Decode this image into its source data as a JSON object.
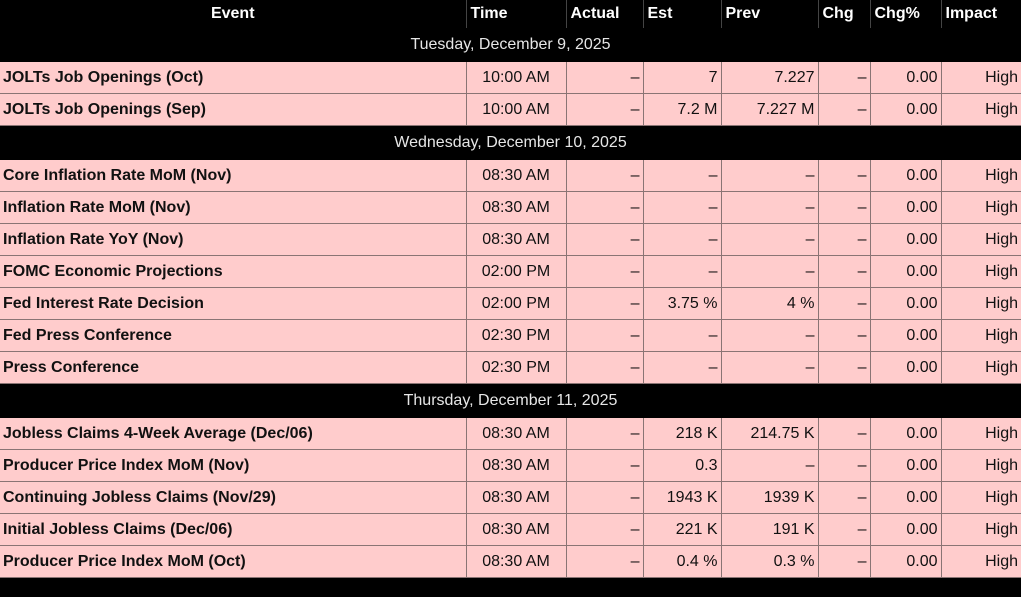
{
  "headers": {
    "event": "Event",
    "time": "Time",
    "actual": "Actual",
    "est": "Est",
    "prev": "Prev",
    "chg": "Chg",
    "chg_pct": "Chg%",
    "impact": "Impact"
  },
  "days": [
    {
      "label": "Tuesday, December 9, 2025",
      "events": [
        {
          "event": "JOLTs Job Openings (Oct)",
          "time": "10:00 AM",
          "actual": "–",
          "est": "7",
          "prev": "7.227",
          "chg": "–",
          "chg_pct": "0.00",
          "impact": "High"
        },
        {
          "event": "JOLTs Job Openings (Sep)",
          "time": "10:00 AM",
          "actual": "–",
          "est": "7.2 M",
          "prev": "7.227 M",
          "chg": "–",
          "chg_pct": "0.00",
          "impact": "High"
        }
      ]
    },
    {
      "label": "Wednesday, December 10, 2025",
      "events": [
        {
          "event": "Core Inflation Rate MoM (Nov)",
          "time": "08:30 AM",
          "actual": "–",
          "est": "–",
          "prev": "–",
          "chg": "–",
          "chg_pct": "0.00",
          "impact": "High"
        },
        {
          "event": "Inflation Rate MoM (Nov)",
          "time": "08:30 AM",
          "actual": "–",
          "est": "–",
          "prev": "–",
          "chg": "–",
          "chg_pct": "0.00",
          "impact": "High"
        },
        {
          "event": "Inflation Rate YoY (Nov)",
          "time": "08:30 AM",
          "actual": "–",
          "est": "–",
          "prev": "–",
          "chg": "–",
          "chg_pct": "0.00",
          "impact": "High"
        },
        {
          "event": "FOMC Economic Projections",
          "time": "02:00 PM",
          "actual": "–",
          "est": "–",
          "prev": "–",
          "chg": "–",
          "chg_pct": "0.00",
          "impact": "High"
        },
        {
          "event": "Fed Interest Rate Decision",
          "time": "02:00 PM",
          "actual": "–",
          "est": "3.75 %",
          "prev": "4 %",
          "chg": "–",
          "chg_pct": "0.00",
          "impact": "High"
        },
        {
          "event": "Fed Press Conference",
          "time": "02:30 PM",
          "actual": "–",
          "est": "–",
          "prev": "–",
          "chg": "–",
          "chg_pct": "0.00",
          "impact": "High"
        },
        {
          "event": "Press Conference",
          "time": "02:30 PM",
          "actual": "–",
          "est": "–",
          "prev": "–",
          "chg": "–",
          "chg_pct": "0.00",
          "impact": "High"
        }
      ]
    },
    {
      "label": "Thursday, December 11, 2025",
      "events": [
        {
          "event": "Jobless Claims 4-Week Average (Dec/06)",
          "time": "08:30 AM",
          "actual": "–",
          "est": "218 K",
          "prev": "214.75 K",
          "chg": "–",
          "chg_pct": "0.00",
          "impact": "High"
        },
        {
          "event": "Producer Price Index MoM (Nov)",
          "time": "08:30 AM",
          "actual": "–",
          "est": "0.3",
          "prev": "–",
          "chg": "–",
          "chg_pct": "0.00",
          "impact": "High"
        },
        {
          "event": "Continuing Jobless Claims (Nov/29)",
          "time": "08:30 AM",
          "actual": "–",
          "est": "1943 K",
          "prev": "1939 K",
          "chg": "–",
          "chg_pct": "0.00",
          "impact": "High"
        },
        {
          "event": "Initial Jobless Claims (Dec/06)",
          "time": "08:30 AM",
          "actual": "–",
          "est": "221 K",
          "prev": "191 K",
          "chg": "–",
          "chg_pct": "0.00",
          "impact": "High"
        },
        {
          "event": "Producer Price Index MoM (Oct)",
          "time": "08:30 AM",
          "actual": "–",
          "est": "0.4 %",
          "prev": "0.3 %",
          "chg": "–",
          "chg_pct": "0.00",
          "impact": "High"
        }
      ]
    }
  ],
  "colors": {
    "header_bg": "#000000",
    "header_text": "#ffffff",
    "day_bg": "#000000",
    "day_text": "#e6e6e6",
    "row_bg": "#ffcccc",
    "row_border": "#8a7474"
  }
}
